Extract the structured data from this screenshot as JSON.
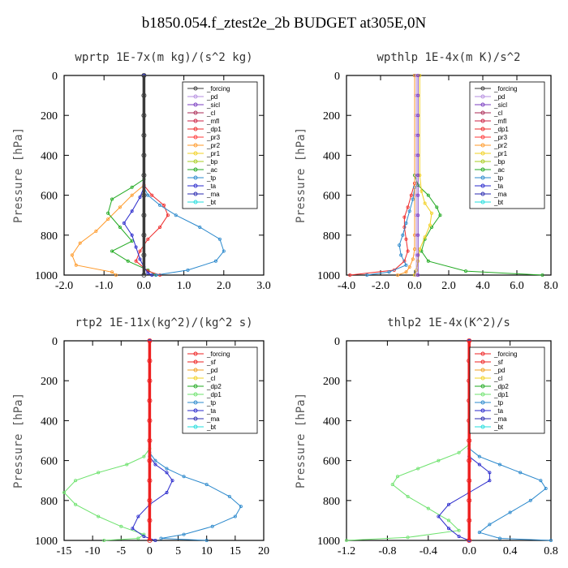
{
  "title": "b1850.054.f_ztest2e_2b  BUDGET at305E,0N",
  "colors": {
    "_forcing": "#3a3a3a",
    "_pd": "#b68ee0",
    "_sicl": "#7a3cc0",
    "_cl": "#aa2a55",
    "_mfl": "#cc2244",
    "_dp1": "#ee2a2a",
    "_pr3": "#ff3a3a",
    "_pr2": "#ff9a2a",
    "_pr1": "#f2d020",
    "_bp": "#a8cc20",
    "_ac": "#22aa22",
    "_tp": "#2a88cc",
    "_ta": "#2a2acc",
    "_ma": "#2a2ab0",
    "_bt": "#22dddd",
    "_sf": "#ee2020",
    "_dp2": "#22aa22",
    "_dp1g": "#6de26d",
    "_cl2": "#f2d020",
    "_pd2": "#f2a020",
    "_tp2": "#2a88cc",
    "_ta2": "#2a2acc",
    "_ma2": "#2a2ab0",
    "_bt2": "#22dddd"
  },
  "chart_data": [
    {
      "type": "line",
      "title": "wprtp  1E-7x(m kg)/(s^2 kg)",
      "ylabel": "Pressure [hPa]",
      "xlim": [
        -2.0,
        3.0
      ],
      "ylim": [
        1000,
        0
      ],
      "xticks": [
        "-2.0",
        "-1.0",
        "0.0",
        "1.0",
        "2.0",
        "3.0"
      ],
      "yticks": [
        "0",
        "200",
        "400",
        "600",
        "800",
        "1000"
      ],
      "legend": [
        "_forcing",
        "_pd",
        "_sicl",
        "_cl",
        "_mfl",
        "_dp1",
        "_pr3",
        "_pr2",
        "_pr1",
        "_bp",
        "_ac",
        "_tp",
        "_ta",
        "_ma",
        "_bt"
      ],
      "series": [
        {
          "name": "_pr2",
          "color_key": "_pr2",
          "x": [
            0,
            0,
            -0.3,
            -0.6,
            -0.9,
            -1.2,
            -1.6,
            -1.8,
            -1.7,
            -0.8,
            -0.7
          ],
          "y": [
            0,
            550,
            600,
            660,
            720,
            780,
            840,
            900,
            950,
            985,
            1000
          ]
        },
        {
          "name": "_ac",
          "color_key": "_ac",
          "x": [
            0,
            0,
            -0.3,
            -0.8,
            -0.9,
            -0.6,
            -0.3,
            -0.8,
            -0.4,
            0.1,
            0.3
          ],
          "y": [
            0,
            520,
            560,
            620,
            690,
            760,
            830,
            880,
            930,
            975,
            1000
          ]
        },
        {
          "name": "_dp1",
          "color_key": "_dp1",
          "x": [
            0,
            0,
            0.2,
            0.5,
            0.6,
            0.4,
            0.1,
            -0.1,
            -0.2,
            0.1,
            0.4
          ],
          "y": [
            0,
            550,
            600,
            650,
            700,
            760,
            820,
            880,
            930,
            980,
            1000
          ]
        },
        {
          "name": "_tp",
          "color_key": "_tp",
          "x": [
            0,
            0,
            0.1,
            0.4,
            0.8,
            1.4,
            1.9,
            2.0,
            1.8,
            1.1,
            0.3
          ],
          "y": [
            0,
            560,
            600,
            650,
            700,
            760,
            820,
            880,
            930,
            975,
            1000
          ]
        },
        {
          "name": "_ta",
          "color_key": "_ta",
          "x": [
            0,
            0,
            -0.1,
            -0.3,
            -0.5,
            -0.3,
            -0.2,
            -0.1,
            0.0,
            0.1,
            0.2
          ],
          "y": [
            0,
            560,
            610,
            680,
            740,
            800,
            860,
            920,
            960,
            990,
            1000
          ]
        },
        {
          "name": "_forcing",
          "color_key": "_forcing",
          "x": [
            0,
            0,
            0,
            0,
            0,
            0,
            0,
            0,
            0,
            0,
            0
          ],
          "y": [
            0,
            100,
            200,
            300,
            400,
            500,
            600,
            700,
            800,
            900,
            1000
          ]
        }
      ]
    },
    {
      "type": "line",
      "title": "wpthlp  1E-4x(m K)/s^2",
      "ylabel": "Pressure [hPa]",
      "xlim": [
        -4.0,
        8.0
      ],
      "ylim": [
        1000,
        0
      ],
      "xticks": [
        "-4.0",
        "-2.0",
        "0.0",
        "2.0",
        "4.0",
        "6.0",
        "8.0"
      ],
      "yticks": [
        "0",
        "200",
        "400",
        "600",
        "800",
        "1000"
      ],
      "legend": [
        "_forcing",
        "_pd",
        "_sicl",
        "_cl",
        "_mfl",
        "_dp1",
        "_pr3",
        "_pr2",
        "_pr1",
        "_bp",
        "_ac",
        "_tp",
        "_ta",
        "_ma",
        "_bt"
      ],
      "series": [
        {
          "name": "_ac",
          "color_key": "_ac",
          "x": [
            0,
            0,
            0.2,
            0.8,
            1.3,
            1.5,
            1.0,
            0.6,
            0.4,
            0.8,
            3.0,
            7.5
          ],
          "y": [
            0,
            500,
            550,
            600,
            660,
            700,
            760,
            820,
            880,
            930,
            980,
            1000
          ]
        },
        {
          "name": "_pr1",
          "color_key": "_pr1",
          "x": [
            0.3,
            0.3,
            0.4,
            0.6,
            1.0,
            0.9,
            0.6,
            0.3,
            0.2,
            0.1,
            0
          ],
          "y": [
            0,
            500,
            580,
            640,
            690,
            750,
            810,
            870,
            930,
            975,
            1000
          ]
        },
        {
          "name": "_dp1",
          "color_key": "_dp1",
          "x": [
            0,
            0,
            -0.2,
            -0.4,
            -0.6,
            -0.6,
            -0.5,
            -0.4,
            -0.6,
            -1.2,
            -3.8
          ],
          "y": [
            0,
            540,
            600,
            660,
            710,
            760,
            820,
            880,
            930,
            975,
            1000
          ]
        },
        {
          "name": "_tp",
          "color_key": "_tp",
          "x": [
            0,
            0,
            -0.1,
            -0.3,
            -0.5,
            -0.7,
            -0.9,
            -0.8,
            -0.5,
            -1.5,
            -2.8
          ],
          "y": [
            0,
            560,
            620,
            680,
            740,
            800,
            850,
            900,
            950,
            985,
            1000
          ]
        },
        {
          "name": "_pr2",
          "color_key": "_pr2",
          "x": [
            0,
            0,
            0,
            -0.1,
            -0.3,
            -0.5,
            -1.0
          ],
          "y": [
            0,
            800,
            870,
            920,
            960,
            985,
            1000
          ]
        },
        {
          "name": "_pd",
          "color_key": "_pd",
          "x": [
            0.1,
            0.1,
            0.1,
            0.1,
            0.1,
            0.1,
            0.1,
            0.1,
            0.1,
            0.1,
            0.1
          ],
          "y": [
            0,
            100,
            200,
            300,
            400,
            500,
            600,
            700,
            800,
            900,
            1000
          ]
        },
        {
          "name": "_sicl",
          "color_key": "_sicl",
          "x": [
            0.2,
            0.2,
            0.2,
            0.2,
            0.2,
            0.2,
            0.2,
            0.2,
            0.2,
            0.2,
            0.2
          ],
          "y": [
            0,
            100,
            200,
            300,
            400,
            500,
            600,
            700,
            800,
            900,
            1000
          ]
        }
      ]
    },
    {
      "type": "line",
      "title": "rtp2  1E-11x(kg^2)/(kg^2 s)",
      "ylabel": "Pressure [hPa]",
      "xlim": [
        -15,
        20
      ],
      "ylim": [
        1000,
        0
      ],
      "xticks": [
        "-15",
        "-10",
        "-5",
        "0",
        "5",
        "10",
        "15",
        "20"
      ],
      "yticks": [
        "0",
        "200",
        "400",
        "600",
        "800",
        "1000"
      ],
      "legend": [
        "_forcing",
        "_sf",
        "_pd",
        "_cl",
        "_dp2",
        "_dp1",
        "_tp",
        "_ta",
        "_ma",
        "_bt"
      ],
      "series": [
        {
          "name": "_dp1",
          "color_key": "_dp1g",
          "x": [
            0,
            0,
            -1,
            -4,
            -9,
            -13,
            -15,
            -13,
            -9,
            -5,
            -1,
            -2,
            -8
          ],
          "y": [
            0,
            540,
            580,
            620,
            660,
            700,
            760,
            820,
            880,
            930,
            970,
            990,
            1000
          ]
        },
        {
          "name": "_tp",
          "color_key": "_tp2",
          "x": [
            0,
            0,
            1,
            3,
            6,
            10,
            14,
            16,
            15,
            11,
            6,
            2,
            10
          ],
          "y": [
            0,
            560,
            600,
            640,
            680,
            720,
            780,
            830,
            880,
            930,
            970,
            990,
            1000
          ]
        },
        {
          "name": "_ta",
          "color_key": "_ta2",
          "x": [
            0,
            0,
            1,
            3,
            4,
            3,
            0,
            -2,
            -3,
            -1,
            1
          ],
          "y": [
            0,
            580,
            620,
            660,
            700,
            760,
            820,
            880,
            940,
            980,
            1000
          ]
        },
        {
          "name": "_forcing",
          "color_key": "_sf",
          "x": [
            0,
            0,
            0,
            0,
            0,
            0,
            0,
            0,
            0,
            0,
            0
          ],
          "y": [
            0,
            100,
            200,
            300,
            400,
            500,
            600,
            700,
            800,
            900,
            1000
          ]
        }
      ]
    },
    {
      "type": "line",
      "title": "thlp2  1E-4x(K^2)/s",
      "ylabel": "Pressure [hPa]",
      "xlim": [
        -1.2,
        0.8
      ],
      "ylim": [
        1000,
        0
      ],
      "xticks": [
        "-1.2",
        "-0.8",
        "-0.4",
        "0.0",
        "0.4",
        "0.8"
      ],
      "yticks": [
        "0",
        "200",
        "400",
        "600",
        "800",
        "1000"
      ],
      "legend": [
        "_forcing",
        "_sf",
        "_pd",
        "_cl",
        "_dp2",
        "_dp1",
        "_tp",
        "_ta",
        "_ma",
        "_bt"
      ],
      "series": [
        {
          "name": "_dp1",
          "color_key": "_dp1g",
          "x": [
            0,
            0,
            -0.1,
            -0.3,
            -0.5,
            -0.7,
            -0.75,
            -0.6,
            -0.4,
            -0.2,
            -0.1,
            -0.6,
            -1.2
          ],
          "y": [
            0,
            520,
            560,
            600,
            640,
            680,
            720,
            780,
            840,
            900,
            950,
            985,
            1000
          ]
        },
        {
          "name": "_tp",
          "color_key": "_tp2",
          "x": [
            0,
            0,
            0.1,
            0.3,
            0.5,
            0.7,
            0.75,
            0.6,
            0.4,
            0.2,
            0.1,
            0.3,
            0.8
          ],
          "y": [
            0,
            540,
            580,
            620,
            660,
            700,
            740,
            800,
            860,
            920,
            960,
            990,
            1000
          ]
        },
        {
          "name": "_ta",
          "color_key": "_ta2",
          "x": [
            0,
            0,
            0.1,
            0.2,
            0.2,
            0.0,
            -0.2,
            -0.3,
            -0.2,
            -0.1,
            0
          ],
          "y": [
            0,
            580,
            620,
            660,
            700,
            760,
            820,
            880,
            940,
            980,
            1000
          ]
        },
        {
          "name": "_forcing",
          "color_key": "_sf",
          "x": [
            0,
            0,
            0,
            0,
            0,
            0,
            0,
            0,
            0,
            0,
            0
          ],
          "y": [
            0,
            100,
            200,
            300,
            400,
            500,
            600,
            700,
            800,
            900,
            1000
          ]
        }
      ]
    }
  ]
}
